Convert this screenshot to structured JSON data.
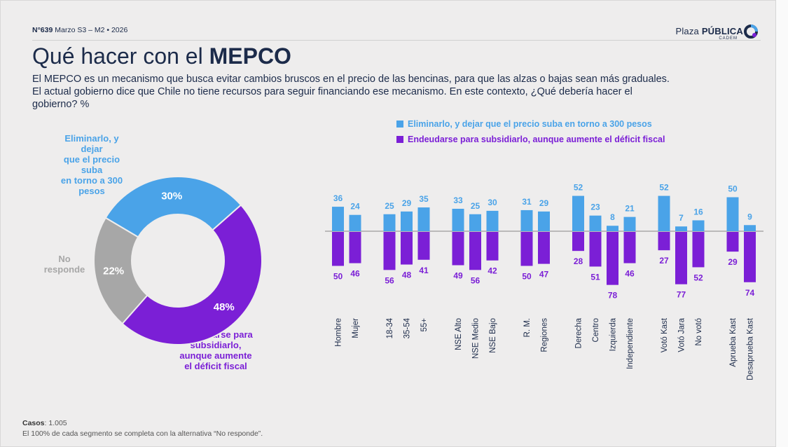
{
  "header": {
    "issue_num": "N°639",
    "issue_rest": "Marzo S3 – M2 • 2026",
    "brand_thin": "Plaza",
    "brand_bold": "PÚBLICA",
    "brand_sub": "CADEM"
  },
  "title": {
    "normal": "Qué hacer con el",
    "bold": "MEPCO"
  },
  "question": "El MEPCO es un mecanismo que busca evitar cambios bruscos en el precio de las bencinas, para que las alzas o bajas sean más graduales. El actual gobierno dice que Chile no tiene recursos para seguir financiando ese mecanismo. En este contexto, ¿Qué debería hacer el gobierno? %",
  "colors": {
    "eliminar": "#4aa3e8",
    "endeudarse": "#7b1fd6",
    "no_responde": "#a7a7a7",
    "text": "#1c2b4a"
  },
  "chart_data": [
    {
      "type": "pie",
      "subtype": "donut",
      "slices": [
        {
          "name": "Eliminarlo, y dejar que el precio suba en torno a 300 pesos",
          "value": 30,
          "label": "30%"
        },
        {
          "name": "Endeudarse para subsidiarlo, aunque aumente el déficit fiscal",
          "value": 48,
          "label": "48%"
        },
        {
          "name": "No responde",
          "value": 22,
          "label": "22%"
        }
      ],
      "callouts": {
        "eliminar": [
          "Eliminarlo, y dejar",
          "que el precio suba",
          "en torno a 300",
          "pesos"
        ],
        "no_responde": [
          "No",
          "responde"
        ],
        "endeudarse": [
          "Endeudarse para",
          "subsidiarlo,",
          "aunque aumente",
          "el déficit fiscal"
        ]
      }
    },
    {
      "type": "bar",
      "subtype": "diverging",
      "legend": {
        "eliminar": "Eliminarlo, y dejar que el precio suba en torno a 300 pesos",
        "endeudarse": "Endeudarse para subsidiarlo, aunque aumente el déficit fiscal"
      },
      "groups": [
        {
          "categories": [
            "Hombre",
            "Mujer"
          ],
          "eliminar": [
            36,
            24
          ],
          "endeudarse": [
            50,
            46
          ]
        },
        {
          "categories": [
            "18-34",
            "35-54",
            "55+"
          ],
          "eliminar": [
            25,
            29,
            35
          ],
          "endeudarse": [
            56,
            48,
            41
          ]
        },
        {
          "categories": [
            "NSE Alto",
            "NSE Medio",
            "NSE Bajo"
          ],
          "eliminar": [
            33,
            25,
            30
          ],
          "endeudarse": [
            49,
            56,
            42
          ]
        },
        {
          "categories": [
            "R. M.",
            "Regiones"
          ],
          "eliminar": [
            31,
            29
          ],
          "endeudarse": [
            50,
            47
          ]
        },
        {
          "categories": [
            "Derecha",
            "Centro",
            "Izquierda",
            "Independiente"
          ],
          "eliminar": [
            52,
            23,
            8,
            21
          ],
          "endeudarse": [
            28,
            51,
            78,
            46
          ]
        },
        {
          "categories": [
            "Votó Kast",
            "Votó Jara",
            "No votó"
          ],
          "eliminar": [
            52,
            7,
            16
          ],
          "endeudarse": [
            27,
            77,
            52
          ]
        },
        {
          "categories": [
            "Aprueba Kast",
            "Desaprueba Kast"
          ],
          "eliminar": [
            50,
            9
          ],
          "endeudarse": [
            29,
            74
          ]
        }
      ]
    }
  ],
  "footer": {
    "cases_label": "Casos",
    "cases_value": ": 1.005",
    "note": "El 100% de cada segmento se completa con la alternativa “No responde”."
  }
}
